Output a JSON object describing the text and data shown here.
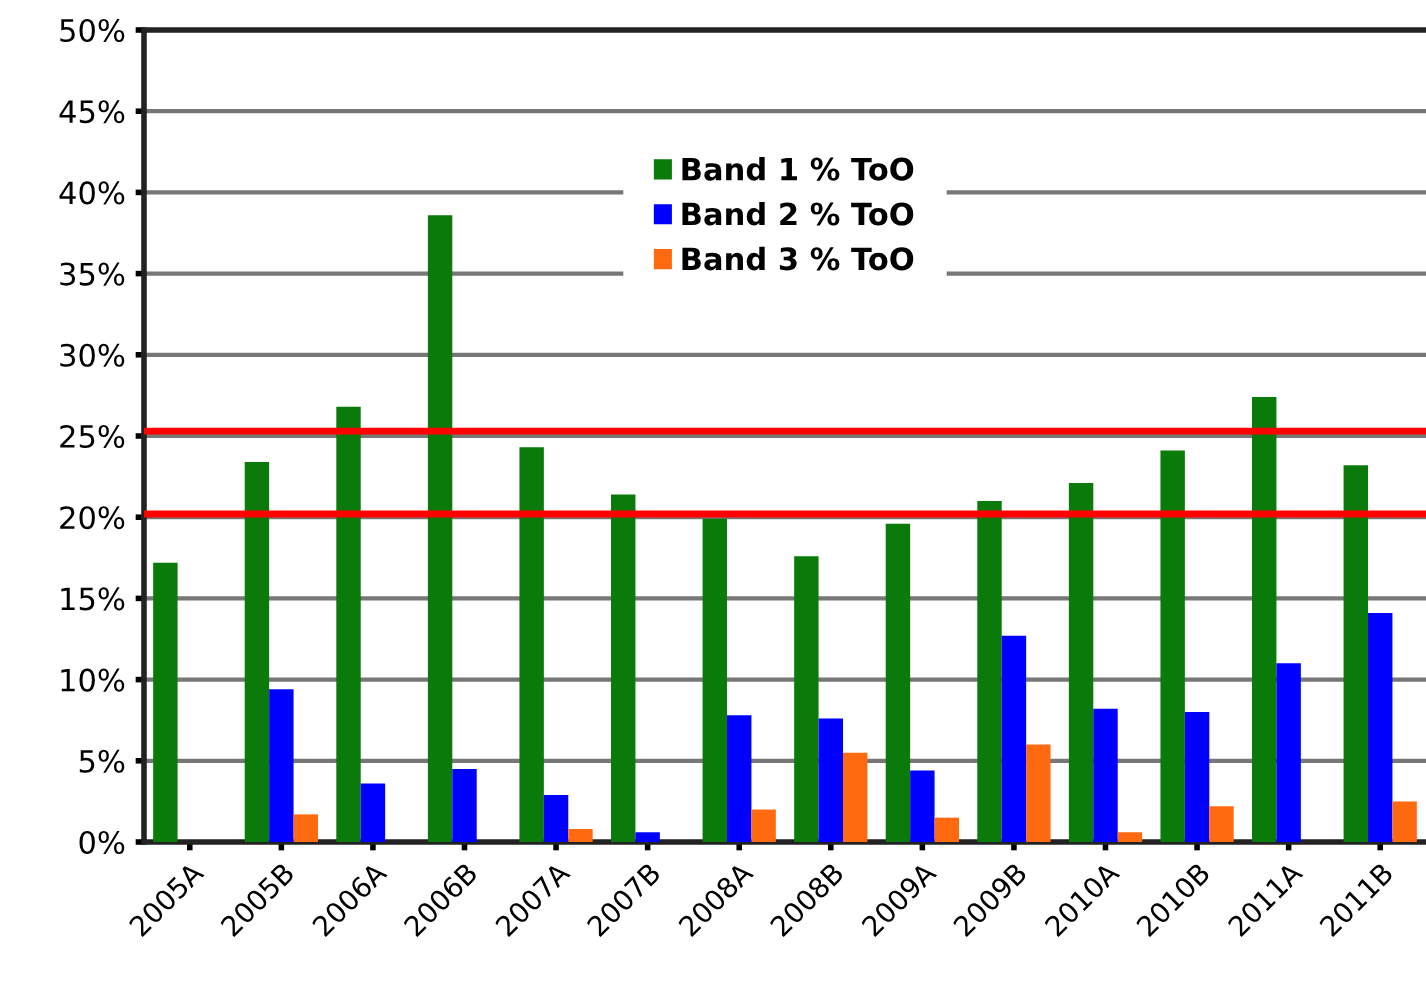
{
  "chart_data": {
    "type": "bar",
    "categories": [
      "2005A",
      "2005B",
      "2006A",
      "2006B",
      "2007A",
      "2007B",
      "2008A",
      "2008B",
      "2009A",
      "2009B",
      "2010A",
      "2010B",
      "2011A",
      "2011B"
    ],
    "series": [
      {
        "name": "Band 1 % ToO",
        "color": "#0a7a0a",
        "values": [
          17.2,
          23.4,
          26.8,
          38.6,
          24.3,
          21.4,
          19.9,
          17.6,
          19.6,
          21.0,
          22.1,
          24.1,
          27.4,
          23.2
        ]
      },
      {
        "name": "Band 2 % ToO",
        "color": "#0000ff",
        "values": [
          0,
          9.4,
          3.6,
          4.5,
          2.9,
          0.6,
          7.8,
          7.6,
          4.4,
          12.7,
          8.2,
          8.0,
          11.0,
          14.1
        ]
      },
      {
        "name": "Band 3 % ToO",
        "color": "#ff6a10",
        "values": [
          0,
          1.7,
          0,
          0,
          0.8,
          0,
          2.0,
          5.5,
          1.5,
          6.0,
          0.6,
          2.2,
          0,
          2.5
        ]
      }
    ],
    "ylim": [
      0,
      50
    ],
    "yticks": [
      {
        "value": 0,
        "label": "0%"
      },
      {
        "value": 5,
        "label": "5%"
      },
      {
        "value": 10,
        "label": "10%"
      },
      {
        "value": 15,
        "label": "15%"
      },
      {
        "value": 20,
        "label": "20%"
      },
      {
        "value": 25,
        "label": "25%"
      },
      {
        "value": 30,
        "label": "30%"
      },
      {
        "value": 35,
        "label": "35%"
      },
      {
        "value": 40,
        "label": "40%"
      },
      {
        "value": 45,
        "label": "45%"
      },
      {
        "value": 50,
        "label": "50%"
      }
    ],
    "ref_lines": [
      {
        "axis": "y",
        "value": 25.3,
        "color": "#ff0000"
      },
      {
        "axis": "y",
        "value": 20.2,
        "color": "#ff0000"
      }
    ],
    "grid": "y",
    "legend": "top"
  }
}
